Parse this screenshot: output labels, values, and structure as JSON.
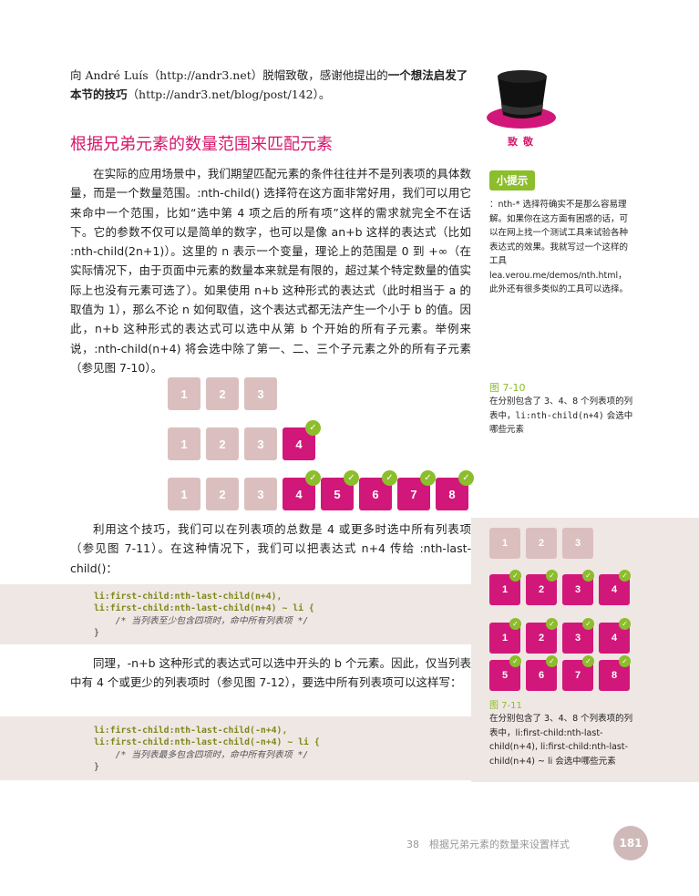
{
  "ack": {
    "prefix": "向 André Luís（http://andr3.net）脱帽致敬，感谢他提出的",
    "bold": "一个想法启发了本节的技巧",
    "suffix": "（http://andr3.net/blog/post/142）。"
  },
  "hat_caption": "致敬",
  "section_title": "根据兄弟元素的数量范围来匹配元素",
  "para1": "在实际的应用场景中，我们期望匹配元素的条件往往并不是列表项的具体数量，而是一个数量范围。:nth-child() 选择符在这方面非常好用，我们可以用它来命中一个范围，比如“选中第 4 项之后的所有项”这样的需求就完全不在话下。它的参数不仅可以是简单的数字，也可以是像 an+b 这样的表达式（比如 :nth-child(2n+1)）。这里的 n 表示一个变量，理论上的范围是 0 到 +∞（在实际情况下，由于页面中元素的数量本来就是有限的，超过某个特定数量的值实际上也没有元素可选了）。如果使用 n+b 这种形式的表达式（此时相当于 a 的取值为 1），那么不论 n 如何取值，这个表达式都无法产生一个小于 b 的值。因此，n+b 这种形式的表达式可以选中从第 b 个开始的所有子元素。举例来说，:nth-child(n+4) 将会选中除了第一、二、三个子元素之外的所有子元素（参见图 7-10）。",
  "tip": {
    "badge": "小提示",
    "text": "：nth-* 选择符确实不是那么容易理解。如果你在这方面有困惑的话，可以在网上找一个测试工具来试验各种表达式的效果。我就写过一个这样的工具 lea.verou.me/demos/nth.html，此外还有很多类似的工具可以选择。"
  },
  "fig10": {
    "label": "图 7-10",
    "caption_pre": "在分别包含了 3、4、8 个列表项的列表中，",
    "caption_code": "li:nth-child(n+4)",
    "caption_post": " 会选中哪些元素",
    "rows": [
      {
        "tiles": [
          "1",
          "2",
          "3"
        ],
        "selected_from": 4
      },
      {
        "tiles": [
          "1",
          "2",
          "3",
          "4"
        ],
        "selected_from": 4
      },
      {
        "tiles": [
          "1",
          "2",
          "3",
          "4",
          "5",
          "6",
          "7",
          "8"
        ],
        "selected_from": 4
      }
    ]
  },
  "para2": "利用这个技巧，我们可以在列表项的总数是 4 或更多时选中所有列表项（参见图 7-11）。在这种情况下，我们可以把表达式 n+4 传给 :nth-last-child()：",
  "code1": {
    "line1": "li:first-child:nth-last-child(n+4),",
    "line2": "li:first-child:nth-last-child(n+4) ~ li {",
    "line3": "/* 当列表至少包含四项时，命中所有列表项 */",
    "line4": "}"
  },
  "para3": "同理，-n+b 这种形式的表达式可以选中开头的 b 个元素。因此，仅当列表中有 4 个或更少的列表项时（参见图 7-12），要选中所有列表项可以这样写：",
  "code2": {
    "line1": "li:first-child:nth-last-child(-n+4),",
    "line2": "li:first-child:nth-last-child(-n+4) ~ li {",
    "line3": "/* 当列表最多包含四项时，命中所有列表项 */",
    "line4": "}"
  },
  "fig11": {
    "label": "图 7-11",
    "caption": "在分别包含了 3、4、8 个列表项的列表中，li:first-child:nth-last-child(n+4), li:first-child:nth-last-child(n+4) ~ li 会选中哪些元素",
    "rows": [
      {
        "tiles": [
          "1",
          "2",
          "3"
        ],
        "selected": false
      },
      {
        "tiles": [
          "1",
          "2",
          "3",
          "4"
        ],
        "selected": true
      },
      {
        "tiles": [
          "1",
          "2",
          "3",
          "4"
        ],
        "selected": true
      },
      {
        "tiles": [
          "5",
          "6",
          "7",
          "8"
        ],
        "selected": true
      }
    ]
  },
  "footer": {
    "text": "38　根据兄弟元素的数量来设置样式",
    "page": "181"
  },
  "colors": {
    "accent_pink": "#d2177a",
    "accent_green": "#8cbd2b",
    "tile_grey": "#dbbfbf",
    "band": "#efe7e4"
  }
}
